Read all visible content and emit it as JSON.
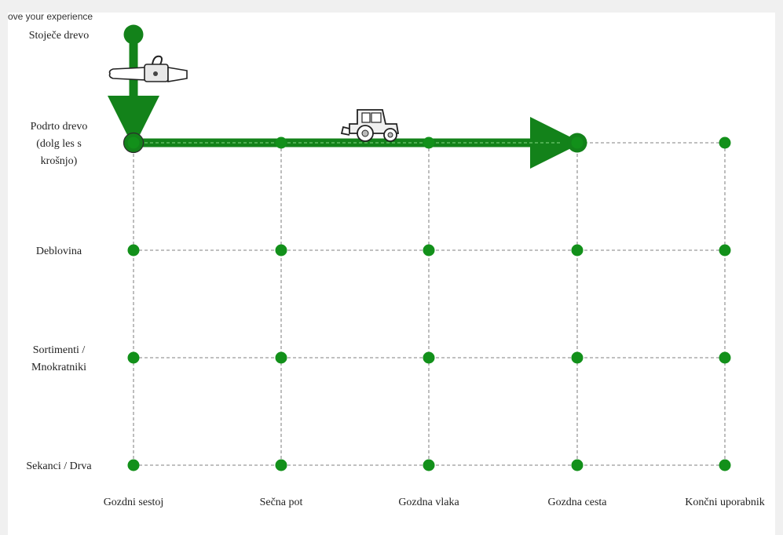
{
  "banner_text": "ove your experience",
  "rows": [
    {
      "id": "stojece",
      "lines": [
        "Stoječe drevo"
      ]
    },
    {
      "id": "podrto",
      "lines": [
        "Podrto drevo",
        "(dolg les s",
        "krošnjo)"
      ]
    },
    {
      "id": "deblovina",
      "lines": [
        "Deblovina"
      ]
    },
    {
      "id": "sortimenti",
      "lines": [
        "Sortimenti /",
        "Mnokratniki"
      ]
    },
    {
      "id": "sekanci",
      "lines": [
        "Sekanci / Drva"
      ]
    }
  ],
  "columns": [
    "Gozdni sestoj",
    "Sečna pot",
    "Gozdna vlaka",
    "Gozdna cesta",
    "Končni uporabnik"
  ],
  "path": [
    {
      "col": 0,
      "row": 0
    },
    {
      "col": 0,
      "row": 1
    },
    {
      "col": 3,
      "row": 1
    }
  ],
  "icons": [
    "chainsaw-icon",
    "tractor-icon"
  ],
  "colors": {
    "node": "#12901a",
    "path": "#13821a",
    "grid": "#9a9a9a",
    "text": "#222222"
  }
}
